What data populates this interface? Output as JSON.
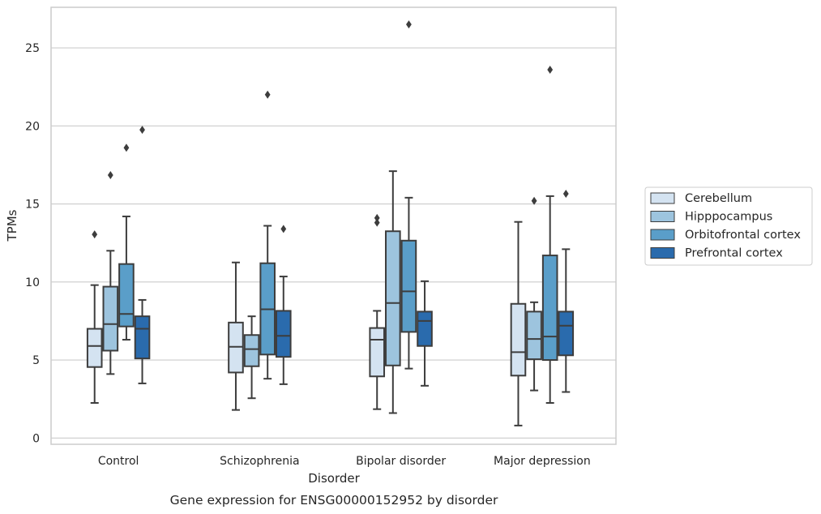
{
  "chart_data": {
    "type": "boxplot",
    "xlabel": "Disorder",
    "ylabel": "TPMs",
    "caption": "Gene expression for ENSG00000152952 by disorder",
    "ylim": [
      -0.4,
      27.6
    ],
    "yticks": [
      0,
      5,
      10,
      15,
      20,
      25
    ],
    "grid": "horizontal",
    "legend_position": "right",
    "categories": [
      "Control",
      "Schizophrenia",
      "Bipolar disorder",
      "Major depression"
    ],
    "series": [
      {
        "name": "Cerebellum",
        "color": "#d4e3f1",
        "boxes": [
          {
            "whislo": 2.25,
            "q1": 4.55,
            "med": 5.9,
            "q3": 7.0,
            "whishi": 9.8,
            "fliers": [
              13.05
            ]
          },
          {
            "whislo": 1.8,
            "q1": 4.2,
            "med": 5.85,
            "q3": 7.4,
            "whishi": 11.25,
            "fliers": []
          },
          {
            "whislo": 1.85,
            "q1": 3.95,
            "med": 6.3,
            "q3": 7.05,
            "whishi": 8.15,
            "fliers": [
              13.8,
              14.1
            ]
          },
          {
            "whislo": 0.8,
            "q1": 4.0,
            "med": 5.5,
            "q3": 8.6,
            "whishi": 13.85,
            "fliers": []
          }
        ]
      },
      {
        "name": "Hipppocampus",
        "color": "#9dc4de",
        "boxes": [
          {
            "whislo": 4.1,
            "q1": 5.6,
            "med": 7.3,
            "q3": 9.7,
            "whishi": 12.0,
            "fliers": [
              16.85
            ]
          },
          {
            "whislo": 2.55,
            "q1": 4.6,
            "med": 5.7,
            "q3": 6.6,
            "whishi": 7.8,
            "fliers": []
          },
          {
            "whislo": 1.6,
            "q1": 4.65,
            "med": 8.65,
            "q3": 13.25,
            "whishi": 17.1,
            "fliers": []
          },
          {
            "whislo": 3.05,
            "q1": 5.05,
            "med": 6.35,
            "q3": 8.1,
            "whishi": 8.7,
            "fliers": [
              15.2
            ]
          }
        ]
      },
      {
        "name": "Orbitofrontal cortex",
        "color": "#5a9ec9",
        "boxes": [
          {
            "whislo": 6.3,
            "q1": 7.15,
            "med": 7.95,
            "q3": 11.15,
            "whishi": 14.2,
            "fliers": [
              18.6
            ]
          },
          {
            "whislo": 3.8,
            "q1": 5.35,
            "med": 8.25,
            "q3": 11.2,
            "whishi": 13.6,
            "fliers": [
              22.0
            ]
          },
          {
            "whislo": 4.45,
            "q1": 6.8,
            "med": 9.4,
            "q3": 12.65,
            "whishi": 15.4,
            "fliers": [
              26.5
            ]
          },
          {
            "whislo": 2.25,
            "q1": 5.0,
            "med": 6.5,
            "q3": 11.7,
            "whishi": 15.5,
            "fliers": [
              23.6
            ]
          }
        ]
      },
      {
        "name": "Prefrontal cortex",
        "color": "#2a6bad",
        "boxes": [
          {
            "whislo": 3.5,
            "q1": 5.1,
            "med": 7.0,
            "q3": 7.8,
            "whishi": 8.85,
            "fliers": [
              19.75
            ]
          },
          {
            "whislo": 3.45,
            "q1": 5.2,
            "med": 6.55,
            "q3": 8.15,
            "whishi": 10.35,
            "fliers": [
              13.4
            ]
          },
          {
            "whislo": 3.35,
            "q1": 5.9,
            "med": 7.5,
            "q3": 8.1,
            "whishi": 10.05,
            "fliers": []
          },
          {
            "whislo": 2.95,
            "q1": 5.3,
            "med": 7.2,
            "q3": 8.1,
            "whishi": 12.1,
            "fliers": [
              15.65
            ]
          }
        ]
      }
    ]
  },
  "colors": {
    "grid": "#cccccc",
    "frame": "#cccccc",
    "line": "#3d3d3d",
    "text": "#262626"
  }
}
